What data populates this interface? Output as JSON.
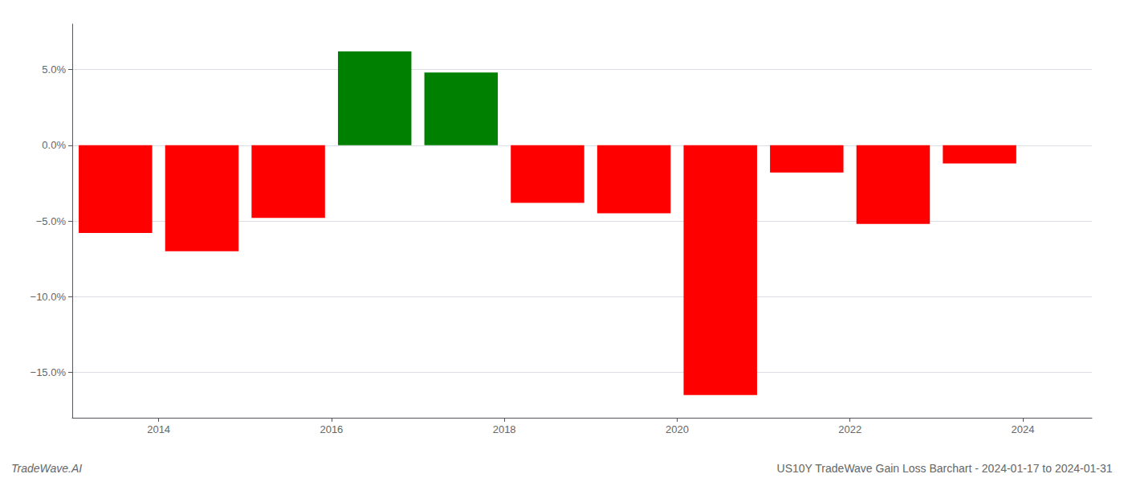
{
  "chart_data": {
    "type": "bar",
    "x": [
      2013.5,
      2014.5,
      2015.5,
      2016.5,
      2017.5,
      2018.5,
      2019.5,
      2020.5,
      2021.5,
      2022.5,
      2023.5
    ],
    "values": [
      -5.8,
      -7.0,
      -4.8,
      6.2,
      4.8,
      -3.8,
      -4.5,
      -16.5,
      -1.8,
      -5.2,
      -1.2
    ],
    "colors": [
      "#FF0000",
      "#FF0000",
      "#FF0000",
      "#008000",
      "#008000",
      "#FF0000",
      "#FF0000",
      "#FF0000",
      "#FF0000",
      "#FF0000",
      "#FF0000"
    ],
    "xlim": [
      2013.0,
      2024.8
    ],
    "xticks": [
      2014,
      2016,
      2018,
      2020,
      2022,
      2024
    ],
    "ylim": [
      -18,
      8
    ],
    "yticks": [
      {
        "value": -15,
        "label": "−15.0%"
      },
      {
        "value": -10,
        "label": "−10.0%"
      },
      {
        "value": -5,
        "label": "−5.0%"
      },
      {
        "value": 0,
        "label": "0.0%"
      },
      {
        "value": 5,
        "label": "5.0%"
      }
    ],
    "grid": true,
    "annotations": [
      "TradeWave.AI",
      "US10Y TradeWave Gain Loss Barchart - 2024-01-17 to 2024-01-31"
    ]
  }
}
